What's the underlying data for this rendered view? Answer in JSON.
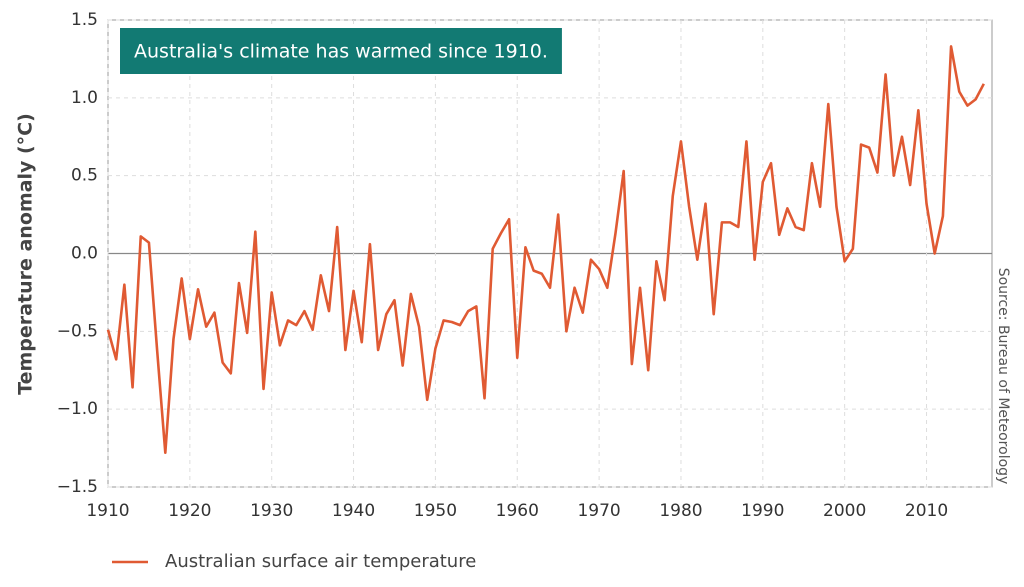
{
  "chart_data": {
    "type": "line",
    "annotation": "Australia's climate has warmed since 1910.",
    "source": "Source: Bureau of Meteorology",
    "y_label": "Temperature anomaly (°C)",
    "x": [
      1910,
      1911,
      1912,
      1913,
      1914,
      1915,
      1916,
      1917,
      1918,
      1919,
      1920,
      1921,
      1922,
      1923,
      1924,
      1925,
      1926,
      1927,
      1928,
      1929,
      1930,
      1931,
      1932,
      1933,
      1934,
      1935,
      1936,
      1937,
      1938,
      1939,
      1940,
      1941,
      1942,
      1943,
      1944,
      1945,
      1946,
      1947,
      1948,
      1949,
      1950,
      1951,
      1952,
      1953,
      1954,
      1955,
      1956,
      1957,
      1958,
      1959,
      1960,
      1961,
      1962,
      1963,
      1964,
      1965,
      1966,
      1967,
      1968,
      1969,
      1970,
      1971,
      1972,
      1973,
      1974,
      1975,
      1976,
      1977,
      1978,
      1979,
      1980,
      1981,
      1982,
      1983,
      1984,
      1985,
      1986,
      1987,
      1988,
      1989,
      1990,
      1991,
      1992,
      1993,
      1994,
      1995,
      1996,
      1997,
      1998,
      1999,
      2000,
      2001,
      2002,
      2003,
      2004,
      2005,
      2006,
      2007,
      2008,
      2009,
      2010,
      2011,
      2012,
      2013,
      2014,
      2015,
      2016,
      2017
    ],
    "series": [
      {
        "name": "Australian surface air temperature",
        "color": "#e05a33",
        "values": [
          -0.49,
          -0.68,
          -0.2,
          -0.86,
          0.11,
          0.07,
          -0.62,
          -1.28,
          -0.55,
          -0.16,
          -0.55,
          -0.23,
          -0.47,
          -0.38,
          -0.7,
          -0.77,
          -0.19,
          -0.51,
          0.14,
          -0.87,
          -0.25,
          -0.59,
          -0.43,
          -0.46,
          -0.37,
          -0.49,
          -0.14,
          -0.37,
          0.17,
          -0.62,
          -0.24,
          -0.57,
          0.06,
          -0.62,
          -0.39,
          -0.3,
          -0.72,
          -0.26,
          -0.47,
          -0.94,
          -0.61,
          -0.43,
          -0.44,
          -0.46,
          -0.37,
          -0.34,
          -0.93,
          0.03,
          0.13,
          0.22,
          -0.67,
          0.04,
          -0.11,
          -0.13,
          -0.22,
          0.25,
          -0.5,
          -0.22,
          -0.38,
          -0.04,
          -0.1,
          -0.22,
          0.13,
          0.53,
          -0.71,
          -0.22,
          -0.75,
          -0.05,
          -0.3,
          0.37,
          0.72,
          0.3,
          -0.04,
          0.32,
          -0.39,
          0.2,
          0.2,
          0.17,
          0.72,
          -0.04,
          0.46,
          0.58,
          0.12,
          0.29,
          0.17,
          0.15,
          0.58,
          0.3,
          0.96,
          0.3,
          -0.05,
          0.03,
          0.7,
          0.68,
          0.52,
          1.15,
          0.5,
          0.75,
          0.44,
          0.92,
          0.32,
          0.0,
          0.24,
          1.33,
          1.04,
          0.95,
          0.99,
          1.09
        ]
      }
    ],
    "xlim": [
      1910,
      2018
    ],
    "xticks": [
      1910,
      1920,
      1930,
      1940,
      1950,
      1960,
      1970,
      1980,
      1990,
      2000,
      2010
    ],
    "ylim": [
      -1.5,
      1.5
    ],
    "yticks": [
      1.5,
      {
        "value": 1,
        "label": "1.0"
      },
      0.5,
      {
        "value": 0,
        "label": "0.0"
      },
      {
        "value": -0.5,
        "label": "−0.5"
      },
      {
        "value": -1,
        "label": "−1.0"
      },
      {
        "value": -1.5,
        "label": "−1.5"
      }
    ],
    "grid": true
  }
}
